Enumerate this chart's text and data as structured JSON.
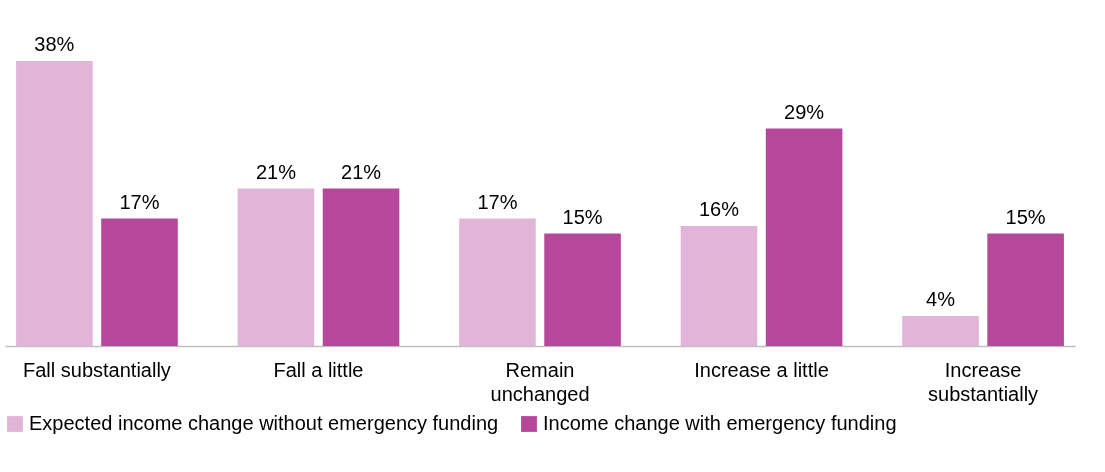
{
  "chart_data": {
    "type": "bar",
    "categories": [
      "Fall substantially",
      "Fall a little",
      "Remain\nunchanged",
      "Increase a little",
      "Increase\nsubstantially"
    ],
    "series": [
      {
        "name": "Expected income change without emergency funding",
        "color": "#e1b5d8",
        "values": [
          38,
          21,
          17,
          16,
          4
        ],
        "value_labels": [
          "38%",
          "21%",
          "17%",
          "16%",
          "4%"
        ]
      },
      {
        "name": "Income change with emergency funding",
        "color": "#b5489b",
        "values": [
          17,
          21,
          15,
          29,
          15
        ],
        "value_labels": [
          "17%",
          "21%",
          "15%",
          "29%",
          "15%"
        ]
      }
    ],
    "legend": "bottom",
    "grid": false,
    "tick_labels": "x"
  }
}
